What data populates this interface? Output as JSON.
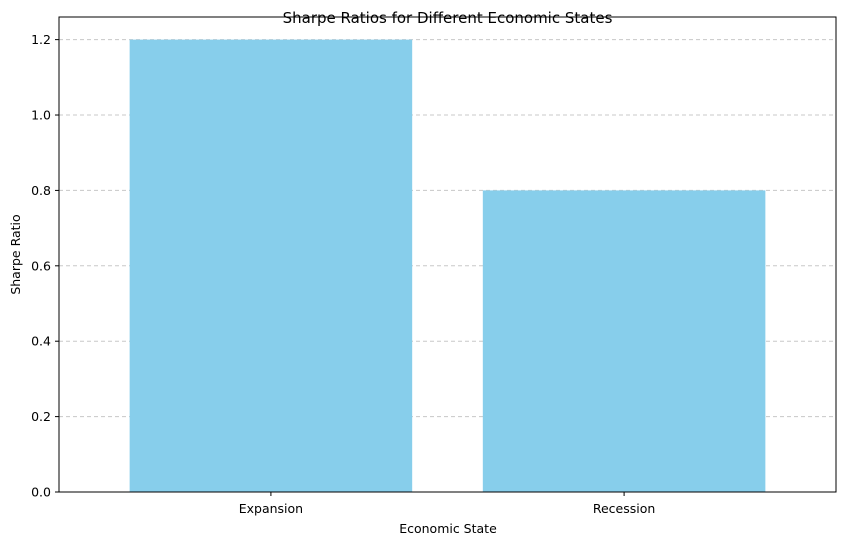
{
  "chart_data": {
    "type": "bar",
    "title": "Sharpe Ratios for Different Economic States",
    "xlabel": "Economic State",
    "ylabel": "Sharpe Ratio",
    "categories": [
      "Expansion",
      "Recession"
    ],
    "values": [
      1.2,
      0.8
    ],
    "ylim": [
      0,
      1.26
    ],
    "yticks": [
      "0.0",
      "0.2",
      "0.4",
      "0.6",
      "0.8",
      "1.0",
      "1.2"
    ],
    "grid": "y-axis dashed",
    "legend": "none",
    "colors": {
      "bar": "#87ceeb",
      "grid": "#c8c8c8",
      "axis": "#000000"
    }
  }
}
